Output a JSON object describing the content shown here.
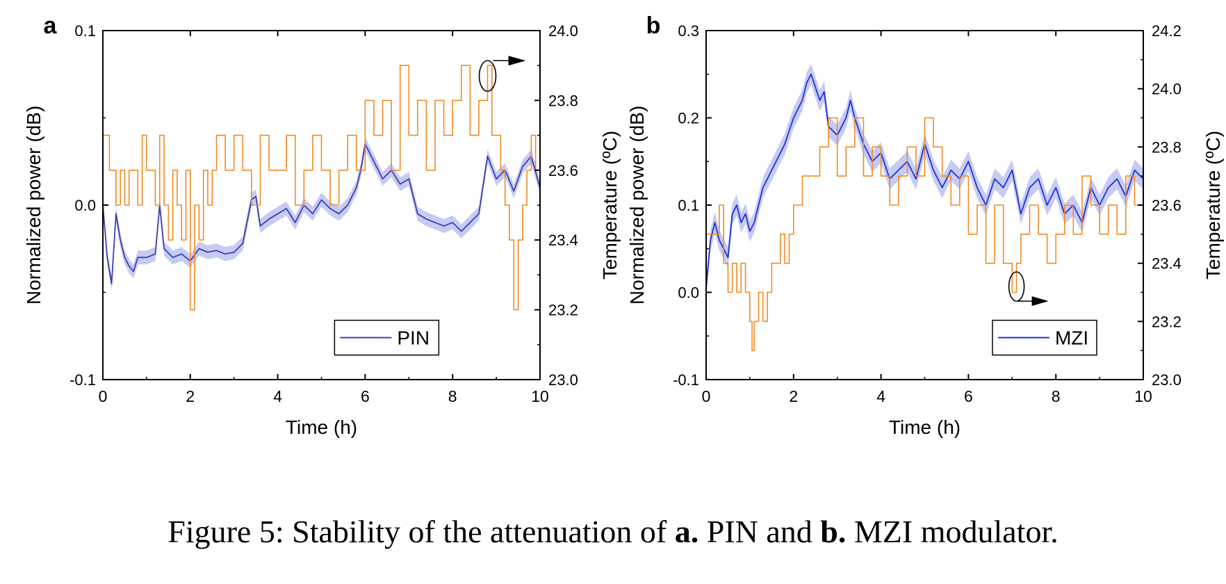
{
  "caption": {
    "prefix": "Figure 5: Stability of the attenuation of ",
    "a_label": "a.",
    "mid": " PIN and ",
    "b_label": "b.",
    "suffix": " MZI modulator."
  },
  "colors": {
    "temperature": "#f08a24",
    "power_a": "#3b3fb0",
    "power_b": "#1f2fd6",
    "band": "#b8bef0"
  },
  "chart_data": [
    {
      "type": "line",
      "panel_label": "a",
      "xlabel": "Time (h)",
      "ylabel": "Normalized power (dB)",
      "y2label": "Temperature (ºC)",
      "xlim": [
        0,
        10
      ],
      "ylim": [
        -0.1,
        0.1
      ],
      "y2lim": [
        23.0,
        24.0
      ],
      "xticks": [
        "0",
        "2",
        "4",
        "6",
        "8",
        "10"
      ],
      "yticks": [
        "-0.1",
        "0.0",
        "0.1"
      ],
      "y2ticks": [
        "23.0",
        "23.2",
        "23.4",
        "23.6",
        "23.8",
        "24.0"
      ],
      "legend": {
        "label": "PIN",
        "position": "bottom-right"
      },
      "series": [
        {
          "name": "PIN",
          "axis": "left",
          "band": 0.004,
          "x": [
            0,
            0.1,
            0.2,
            0.3,
            0.4,
            0.5,
            0.6,
            0.7,
            0.8,
            1.0,
            1.2,
            1.3,
            1.4,
            1.6,
            1.8,
            2.0,
            2.2,
            2.4,
            2.6,
            2.8,
            3.0,
            3.2,
            3.4,
            3.5,
            3.6,
            3.8,
            4.0,
            4.2,
            4.4,
            4.6,
            4.8,
            5.0,
            5.2,
            5.4,
            5.6,
            5.8,
            5.9,
            6.0,
            6.2,
            6.4,
            6.6,
            6.8,
            7.0,
            7.2,
            7.4,
            7.6,
            7.8,
            8.0,
            8.2,
            8.4,
            8.6,
            8.8,
            9.0,
            9.2,
            9.4,
            9.6,
            9.8,
            10.0
          ],
          "y": [
            0.0,
            -0.03,
            -0.045,
            -0.005,
            -0.02,
            -0.03,
            -0.035,
            -0.038,
            -0.03,
            -0.03,
            -0.028,
            0.0,
            -0.025,
            -0.03,
            -0.028,
            -0.032,
            -0.025,
            -0.027,
            -0.026,
            -0.028,
            -0.027,
            -0.022,
            0.003,
            0.005,
            -0.012,
            -0.008,
            -0.005,
            -0.002,
            -0.01,
            0.0,
            -0.005,
            0.003,
            -0.002,
            -0.005,
            0.0,
            0.01,
            0.02,
            0.035,
            0.025,
            0.015,
            0.02,
            0.012,
            0.015,
            -0.005,
            -0.008,
            -0.01,
            -0.012,
            -0.01,
            -0.015,
            -0.01,
            -0.005,
            0.028,
            0.015,
            0.02,
            0.008,
            0.022,
            0.028,
            0.01
          ]
        },
        {
          "name": "",
          "axis": "right",
          "style": "step",
          "x": [
            0,
            0.15,
            0.3,
            0.4,
            0.5,
            0.6,
            0.7,
            0.8,
            0.9,
            1.0,
            1.1,
            1.2,
            1.3,
            1.4,
            1.5,
            1.6,
            1.7,
            1.8,
            1.9,
            2.0,
            2.1,
            2.2,
            2.3,
            2.4,
            2.5,
            2.6,
            2.8,
            3.0,
            3.2,
            3.4,
            3.6,
            3.8,
            4.0,
            4.2,
            4.4,
            4.6,
            4.8,
            5.0,
            5.2,
            5.4,
            5.6,
            5.8,
            6.0,
            6.2,
            6.4,
            6.6,
            6.8,
            7.0,
            7.2,
            7.4,
            7.6,
            7.8,
            8.0,
            8.2,
            8.4,
            8.6,
            8.8,
            8.9,
            9.0,
            9.1,
            9.2,
            9.3,
            9.4,
            9.5,
            9.6,
            9.7,
            9.8,
            9.9,
            10.0
          ],
          "y": [
            23.7,
            23.6,
            23.5,
            23.6,
            23.5,
            23.6,
            23.6,
            23.5,
            23.7,
            23.6,
            23.6,
            23.5,
            23.7,
            23.5,
            23.4,
            23.6,
            23.5,
            23.4,
            23.6,
            23.2,
            23.5,
            23.4,
            23.6,
            23.5,
            23.6,
            23.7,
            23.6,
            23.7,
            23.6,
            23.5,
            23.7,
            23.6,
            23.6,
            23.7,
            23.5,
            23.6,
            23.7,
            23.6,
            23.5,
            23.6,
            23.7,
            23.6,
            23.8,
            23.7,
            23.8,
            23.6,
            23.9,
            23.7,
            23.8,
            23.6,
            23.8,
            23.7,
            23.8,
            23.9,
            23.7,
            23.8,
            23.9,
            23.7,
            23.7,
            23.6,
            23.5,
            23.4,
            23.2,
            23.4,
            23.5,
            23.6,
            23.7,
            23.6,
            23.7
          ]
        }
      ]
    },
    {
      "type": "line",
      "panel_label": "b",
      "xlabel": "Time (h)",
      "ylabel": "Normalized power (dB)",
      "y2label": "Temperature (ºC)",
      "xlim": [
        0,
        10
      ],
      "ylim": [
        -0.1,
        0.3
      ],
      "y2lim": [
        23.0,
        24.2
      ],
      "xticks": [
        "0",
        "2",
        "4",
        "6",
        "8",
        "10"
      ],
      "yticks": [
        "-0.1",
        "0.0",
        "0.1",
        "0.2",
        "0.3"
      ],
      "y2ticks": [
        "23.0",
        "23.2",
        "23.4",
        "23.6",
        "23.8",
        "24.0",
        "24.2"
      ],
      "legend": {
        "label": "MZI",
        "position": "bottom-right"
      },
      "series": [
        {
          "name": "MZI",
          "axis": "left",
          "band": 0.012,
          "x": [
            0,
            0.1,
            0.2,
            0.3,
            0.4,
            0.5,
            0.6,
            0.7,
            0.8,
            0.9,
            1.0,
            1.1,
            1.2,
            1.3,
            1.4,
            1.6,
            1.8,
            2.0,
            2.2,
            2.3,
            2.4,
            2.6,
            2.7,
            2.8,
            3.0,
            3.2,
            3.3,
            3.4,
            3.6,
            3.8,
            4.0,
            4.2,
            4.4,
            4.6,
            4.8,
            5.0,
            5.2,
            5.4,
            5.6,
            5.8,
            6.0,
            6.2,
            6.4,
            6.6,
            6.8,
            7.0,
            7.2,
            7.4,
            7.6,
            7.8,
            8.0,
            8.2,
            8.4,
            8.6,
            8.8,
            9.0,
            9.2,
            9.4,
            9.6,
            9.8,
            10.0
          ],
          "y": [
            0.005,
            0.06,
            0.08,
            0.06,
            0.05,
            0.04,
            0.09,
            0.1,
            0.08,
            0.09,
            0.07,
            0.08,
            0.1,
            0.12,
            0.13,
            0.15,
            0.17,
            0.2,
            0.22,
            0.24,
            0.25,
            0.22,
            0.23,
            0.19,
            0.18,
            0.2,
            0.22,
            0.2,
            0.17,
            0.15,
            0.16,
            0.13,
            0.14,
            0.15,
            0.13,
            0.17,
            0.14,
            0.12,
            0.14,
            0.13,
            0.15,
            0.12,
            0.1,
            0.13,
            0.12,
            0.14,
            0.09,
            0.12,
            0.13,
            0.1,
            0.12,
            0.09,
            0.1,
            0.08,
            0.12,
            0.1,
            0.12,
            0.13,
            0.11,
            0.14,
            0.13
          ]
        },
        {
          "name": "",
          "axis": "right",
          "style": "step",
          "x": [
            0,
            0.1,
            0.2,
            0.3,
            0.4,
            0.5,
            0.6,
            0.7,
            0.8,
            0.9,
            1.0,
            1.05,
            1.1,
            1.2,
            1.3,
            1.4,
            1.5,
            1.6,
            1.7,
            1.8,
            1.9,
            2.0,
            2.2,
            2.4,
            2.6,
            2.8,
            3.0,
            3.2,
            3.4,
            3.6,
            3.8,
            4.0,
            4.2,
            4.4,
            4.6,
            4.8,
            5.0,
            5.2,
            5.4,
            5.6,
            5.8,
            6.0,
            6.2,
            6.4,
            6.6,
            6.8,
            7.0,
            7.1,
            7.2,
            7.4,
            7.6,
            7.8,
            8.0,
            8.2,
            8.4,
            8.6,
            8.8,
            9.0,
            9.2,
            9.4,
            9.6,
            9.8,
            10.0
          ],
          "y": [
            23.5,
            23.5,
            23.5,
            23.6,
            23.4,
            23.3,
            23.4,
            23.3,
            23.4,
            23.3,
            23.2,
            23.1,
            23.2,
            23.3,
            23.2,
            23.3,
            23.4,
            23.4,
            23.5,
            23.4,
            23.5,
            23.6,
            23.7,
            23.7,
            23.8,
            23.9,
            23.7,
            23.8,
            23.9,
            23.7,
            23.8,
            23.7,
            23.6,
            23.7,
            23.8,
            23.7,
            23.9,
            23.8,
            23.7,
            23.6,
            23.7,
            23.5,
            23.6,
            23.4,
            23.6,
            23.4,
            23.3,
            23.4,
            23.5,
            23.6,
            23.5,
            23.4,
            23.5,
            23.6,
            23.5,
            23.7,
            23.6,
            23.5,
            23.6,
            23.5,
            23.7,
            23.6,
            23.6
          ]
        }
      ]
    }
  ]
}
